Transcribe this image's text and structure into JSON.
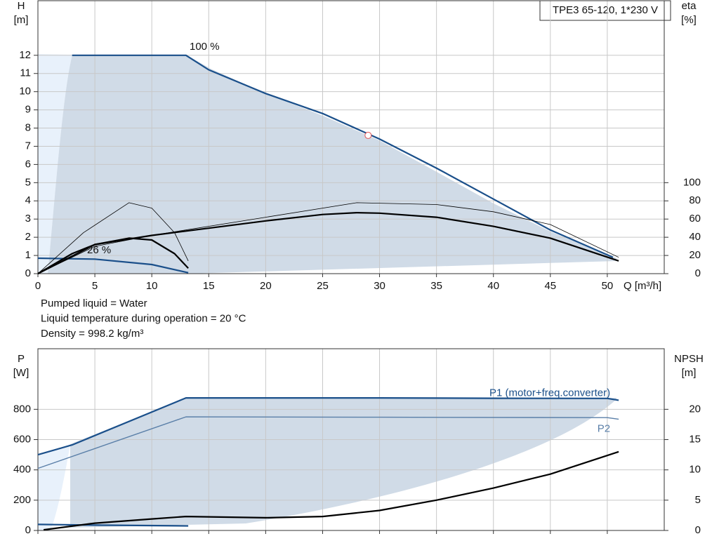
{
  "charts": [
    {
      "chart_data": {
        "type": "line",
        "subtitle": "TPE3 65-120, 1*230 V",
        "ylabel": [
          "H",
          "[m]"
        ],
        "y2label": [
          "eta",
          "[%]"
        ],
        "xlabel": "Q [m³/h]",
        "xlim": [
          0,
          55
        ],
        "xticks": [
          0,
          5,
          10,
          15,
          20,
          25,
          30,
          35,
          40,
          45,
          50
        ],
        "ylim": [
          0,
          15
        ],
        "yticks": [
          0,
          1,
          2,
          3,
          4,
          5,
          6,
          7,
          8,
          9,
          10,
          11,
          12
        ],
        "y2lim": [
          0,
          300
        ],
        "y2ticks": [
          0,
          20,
          40,
          60,
          80,
          100
        ],
        "grid": true,
        "annotations": [
          "100 %",
          "26 %"
        ],
        "series": [
          {
            "color": "#1a4f8a",
            "x": [
              3,
              13,
              15,
              20,
              25,
              30,
              35,
              40,
              45,
              50.5
            ],
            "values": [
              12,
              12,
              11.2,
              9.9,
              8.8,
              7.4,
              5.8,
              4.1,
              2.4,
              0.9
            ]
          },
          {
            "color": "#1a4f8a",
            "x": [
              0,
              5,
              10,
              13.2
            ],
            "values": [
              0.85,
              0.8,
              0.5,
              0.05
            ]
          },
          {
            "color": "#000000",
            "axis": "y2",
            "x": [
              0,
              5,
              10,
              15,
              20,
              25,
              28,
              30,
              35,
              40,
              45,
              51
            ],
            "values": [
              0,
              32,
              42,
              50,
              58,
              65,
              67,
              66.5,
              62,
              52,
              39,
              14
            ]
          },
          {
            "color": "#000000",
            "axis": "y2",
            "x": [
              0,
              5,
              10,
              20,
              28,
              35,
              40,
              45,
              51
            ],
            "values": [
              0,
              30,
              42,
              62,
              78,
              76,
              68,
              54,
              18
            ]
          },
          {
            "color": "#000000",
            "axis": "y2",
            "x": [
              0,
              3,
              5,
              8,
              10,
              12,
              13.2
            ],
            "values": [
              0,
              22,
              32,
              39,
              37,
              22,
              6
            ]
          },
          {
            "color": "#000000",
            "axis": "y2",
            "x": [
              0,
              4,
              8,
              10,
              12,
              13.2
            ],
            "values": [
              0,
              45,
              78,
              72,
              45,
              14
            ]
          }
        ],
        "point": {
          "x": 29,
          "value": 7.6,
          "color": "#e05050"
        },
        "notes": [
          "Pumped liquid = Water",
          "Liquid temperature during operation = 20 °C",
          "Density = 998.2 kg/m³"
        ]
      }
    },
    {
      "chart_data": {
        "type": "line",
        "ylabel": [
          "P",
          "[W]"
        ],
        "y2label": [
          "NPSH",
          "[m]"
        ],
        "xlim": [
          0,
          55
        ],
        "xticks": [
          0,
          5,
          10,
          15,
          20,
          25,
          30,
          35,
          40,
          45,
          50
        ],
        "ylim": [
          0,
          1200
        ],
        "yticks": [
          0,
          200,
          400,
          600,
          800
        ],
        "y2lim": [
          0,
          30
        ],
        "y2ticks": [
          0,
          5,
          10,
          15,
          20
        ],
        "grid": true,
        "series": [
          {
            "name": "P1 (motor+freq.converter)",
            "color": "#1a4f8a",
            "x": [
              0,
              3,
              13,
              20,
              30,
              40,
              50,
              51
            ],
            "values": [
              500,
              565,
              875,
              875,
              875,
              873,
              872,
              860
            ]
          },
          {
            "name": "P2",
            "color": "#5a7fa8",
            "x": [
              0,
              13,
              30,
              50,
              51
            ],
            "values": [
              410,
              750,
              748,
              745,
              735
            ]
          },
          {
            "color": "#1a4f8a",
            "x": [
              0,
              5,
              13.2
            ],
            "values": [
              40,
              35,
              30
            ]
          },
          {
            "color": "#000000",
            "axis": "y2",
            "x": [
              0.5,
              5,
              10,
              13,
              20,
              25,
              30,
              35,
              40,
              45,
              51
            ],
            "values": [
              0.1,
              1.2,
              1.9,
              2.3,
              2.1,
              2.3,
              3.3,
              5,
              7,
              9.3,
              13
            ]
          }
        ]
      }
    }
  ]
}
